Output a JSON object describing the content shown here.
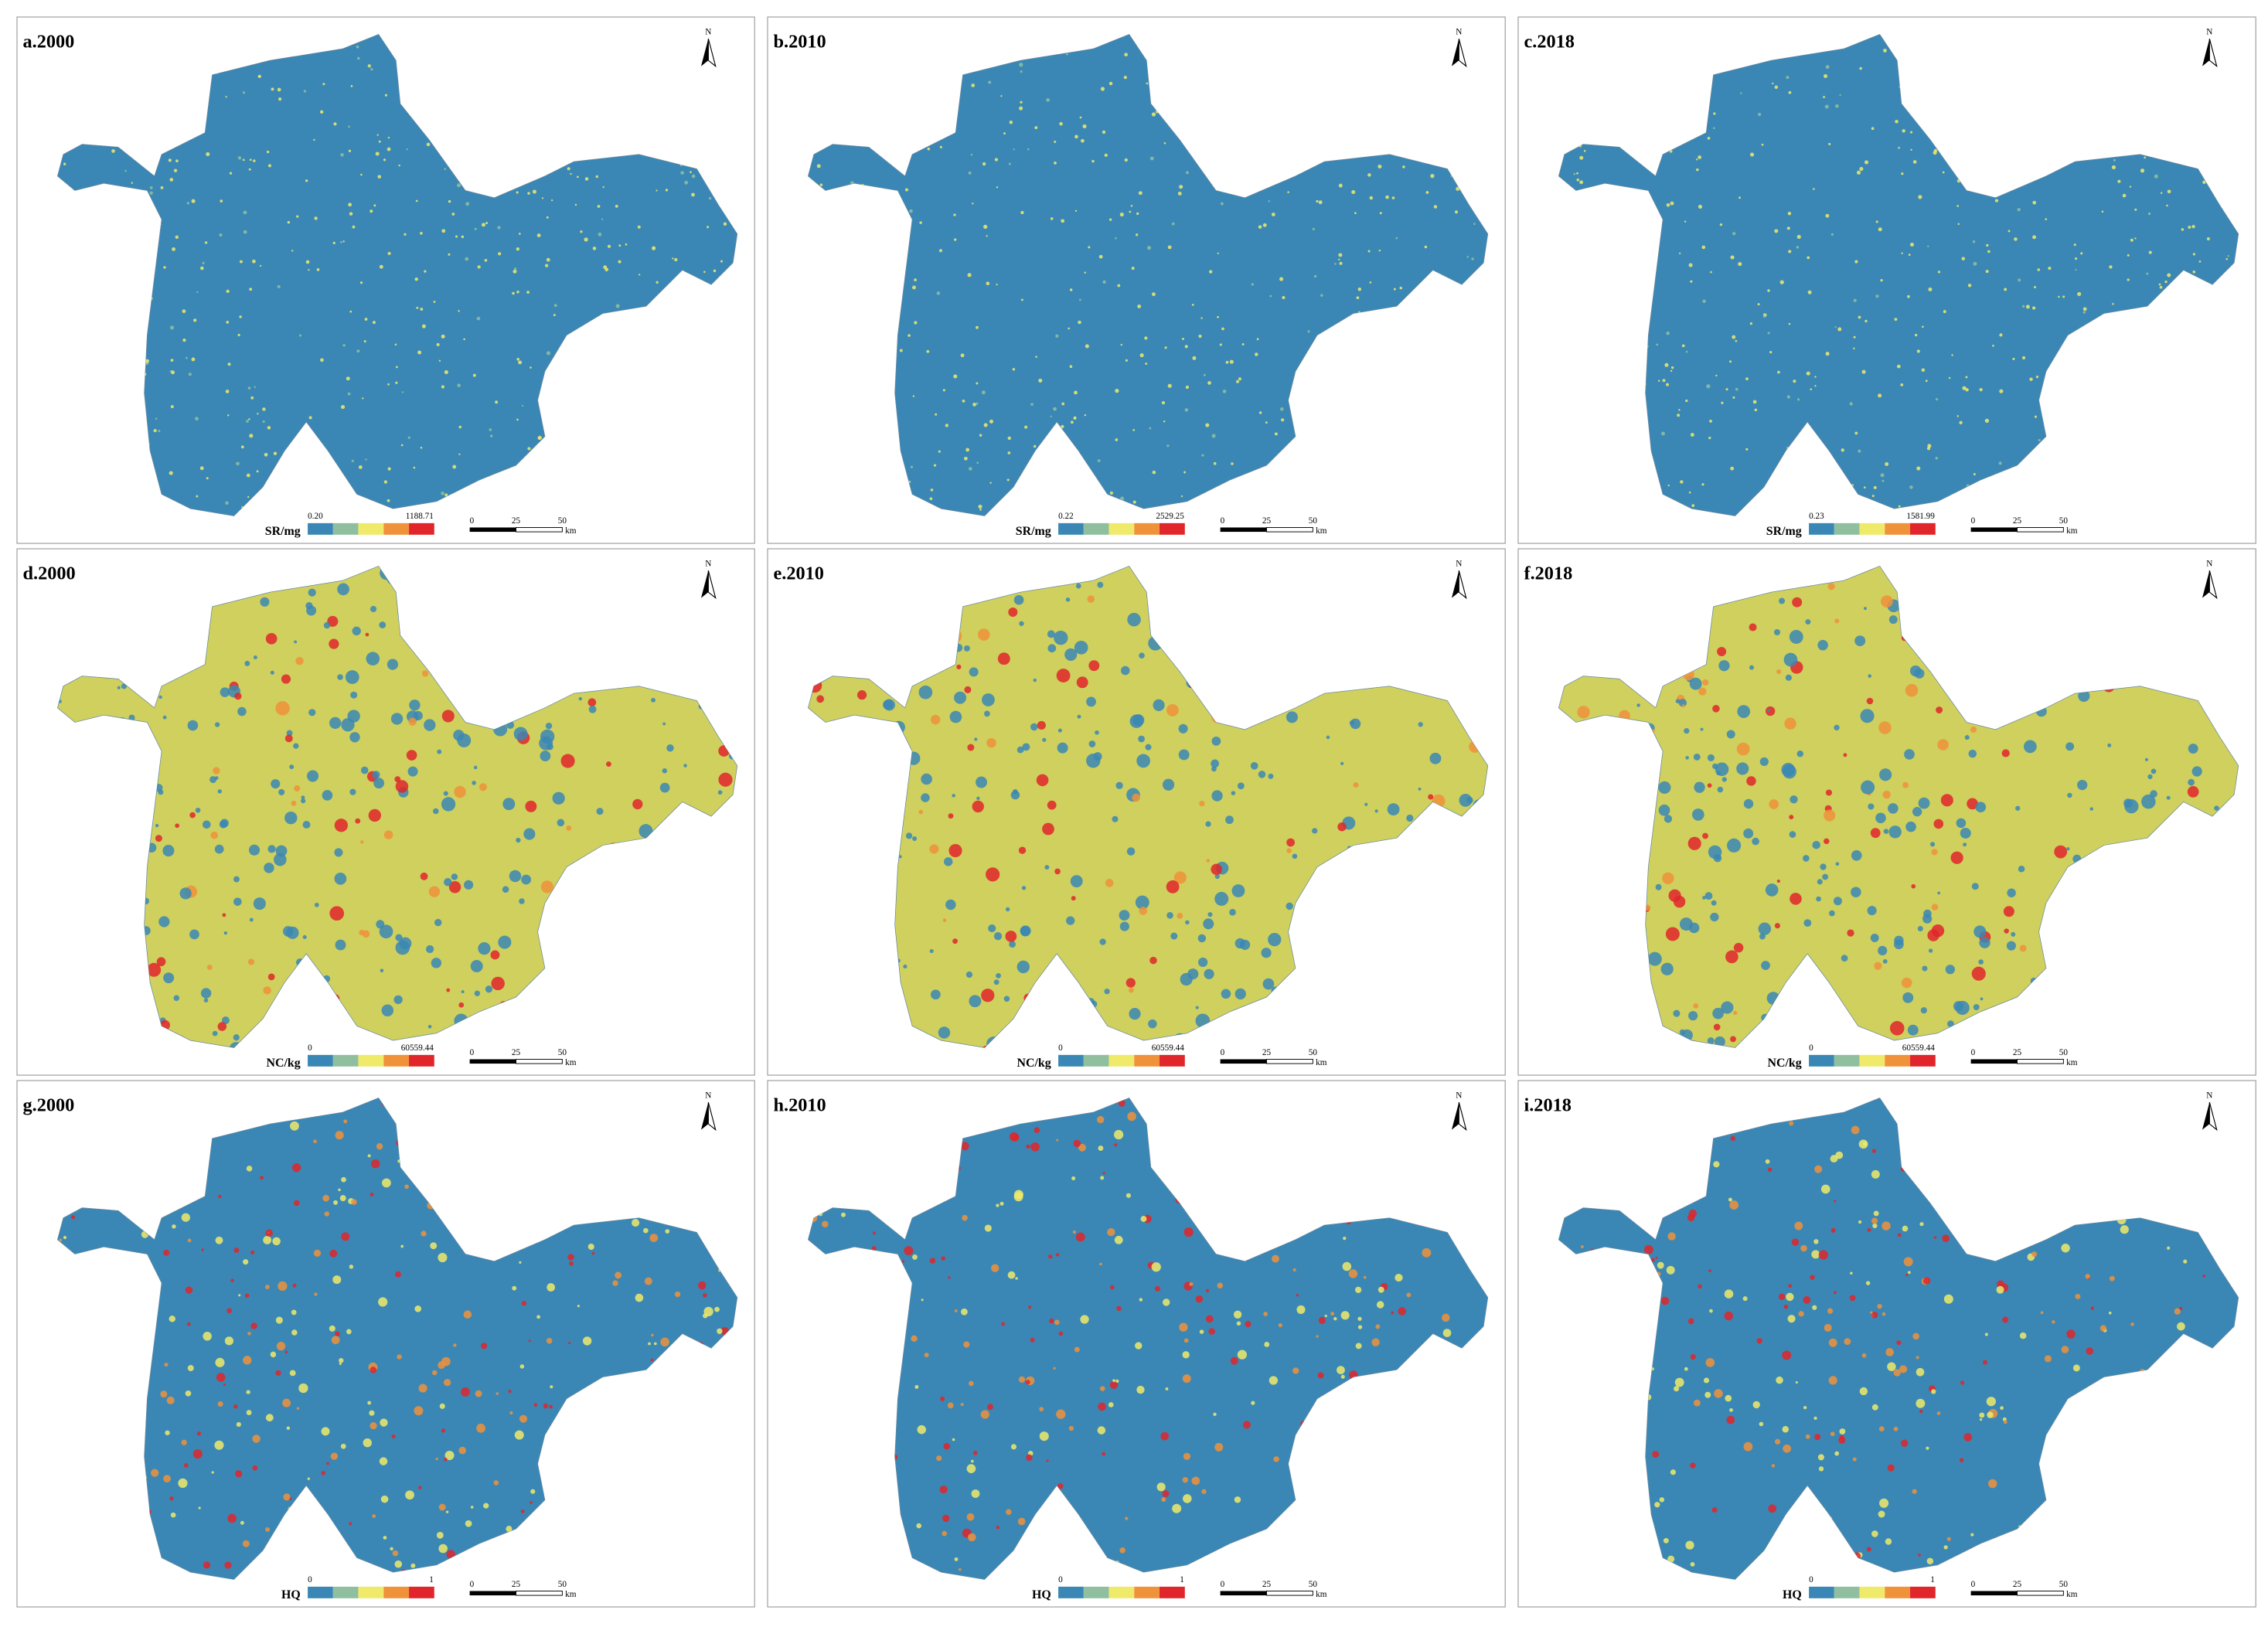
{
  "panels": [
    {
      "label": "a.2000",
      "legend_title": "SR/mg",
      "legend_min": "0.20",
      "legend_max": "1188.71"
    },
    {
      "label": "b.2010",
      "legend_title": "SR/mg",
      "legend_min": "0.22",
      "legend_max": "2529.25"
    },
    {
      "label": "c.2018",
      "legend_title": "SR/mg",
      "legend_min": "0.23",
      "legend_max": "1581.99"
    },
    {
      "label": "d.2000",
      "legend_title": "NC/kg",
      "legend_min": "0",
      "legend_max": "60559.44"
    },
    {
      "label": "e.2010",
      "legend_title": "NC/kg",
      "legend_min": "0",
      "legend_max": "60559.44"
    },
    {
      "label": "f.2018",
      "legend_title": "NC/kg",
      "legend_min": "0",
      "legend_max": "60559.44"
    },
    {
      "label": "g.2000",
      "legend_title": "HQ",
      "legend_min": "0",
      "legend_max": "1"
    },
    {
      "label": "h.2010",
      "legend_title": "HQ",
      "legend_min": "0",
      "legend_max": "1"
    },
    {
      "label": "i.2018",
      "legend_title": "HQ",
      "legend_min": "0",
      "legend_max": "1"
    }
  ],
  "legend_colors": [
    "#3a87b5",
    "#8fbf9f",
    "#f0ea6a",
    "#f0923a",
    "#e0262a"
  ],
  "north": "N",
  "scale_bar": {
    "ticks": [
      "0",
      "25",
      "50"
    ],
    "unit": "km"
  }
}
